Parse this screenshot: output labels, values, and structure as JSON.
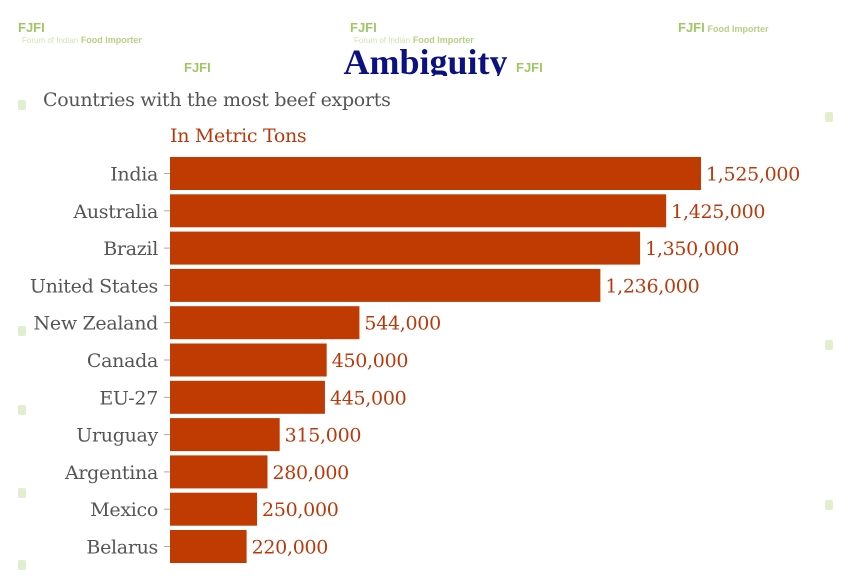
{
  "watermark": {
    "logo": "FJFI",
    "subtitle": "Forum of Indian",
    "brand": "Food Importer"
  },
  "heading": "Ambiguity",
  "chart_data": {
    "type": "bar",
    "orientation": "horizontal",
    "title": "Countries with the most beef exports",
    "subtitle": "In Metric Tons",
    "categories": [
      "India",
      "Australia",
      "Brazil",
      "United States",
      "New Zealand",
      "Canada",
      "EU-27",
      "Uruguay",
      "Argentina",
      "Mexico",
      "Belarus"
    ],
    "values": [
      1525000,
      1425000,
      1350000,
      1236000,
      544000,
      450000,
      445000,
      315000,
      280000,
      250000,
      220000
    ],
    "value_labels": [
      "1,525,000",
      "1,425,000",
      "1,350,000",
      "1,236,000",
      "544,000",
      "450,000",
      "445,000",
      "315,000",
      "280,000",
      "250,000",
      "220,000"
    ],
    "xlim": [
      0,
      1525000
    ],
    "grid": false,
    "legend": "none",
    "colors": {
      "bar": "#bf3b02",
      "label": "#b83a0c",
      "category": "#555555"
    }
  }
}
